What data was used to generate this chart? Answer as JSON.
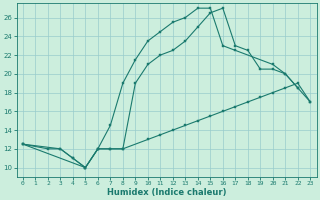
{
  "xlabel": "Humidex (Indice chaleur)",
  "bg_color": "#cceedd",
  "grid_color": "#99cccc",
  "line_color": "#1a7a6e",
  "xlim": [
    -0.5,
    23.5
  ],
  "ylim": [
    9.0,
    27.5
  ],
  "xticks": [
    0,
    1,
    2,
    3,
    4,
    5,
    6,
    7,
    8,
    9,
    10,
    11,
    12,
    13,
    14,
    15,
    16,
    17,
    18,
    19,
    20,
    21,
    22,
    23
  ],
  "yticks": [
    10,
    12,
    14,
    16,
    18,
    20,
    22,
    24,
    26
  ],
  "line1_x": [
    0,
    2,
    3,
    4,
    5,
    6,
    7,
    8,
    9,
    10,
    11,
    12,
    13,
    14,
    15,
    16,
    17,
    20,
    21,
    22
  ],
  "line1_y": [
    12.5,
    12.0,
    12.0,
    11.0,
    10.0,
    12.0,
    14.5,
    19.0,
    21.5,
    23.5,
    24.5,
    25.5,
    26.0,
    27.0,
    27.0,
    23.0,
    22.5,
    21.0,
    20.0,
    18.5
  ],
  "line2_x": [
    0,
    3,
    4,
    5,
    6,
    7,
    8,
    10,
    11,
    12,
    13,
    14,
    15,
    16,
    17,
    18,
    19,
    20,
    21,
    22,
    23
  ],
  "line2_y": [
    12.5,
    12.0,
    11.0,
    10.0,
    12.0,
    12.0,
    12.0,
    13.0,
    13.5,
    14.0,
    14.5,
    15.0,
    15.5,
    16.0,
    16.5,
    17.0,
    17.5,
    18.0,
    18.5,
    19.0,
    17.0
  ],
  "line3_x": [
    0,
    5,
    6,
    7,
    8,
    9,
    10,
    11,
    12,
    13,
    14,
    15,
    16,
    17,
    18,
    19,
    20,
    21,
    22,
    23
  ],
  "line3_y": [
    12.5,
    10.0,
    12.0,
    12.0,
    12.0,
    19.0,
    21.0,
    22.0,
    22.5,
    23.5,
    25.0,
    26.5,
    27.0,
    23.0,
    22.5,
    20.5,
    20.5,
    20.0,
    18.5,
    17.0
  ]
}
